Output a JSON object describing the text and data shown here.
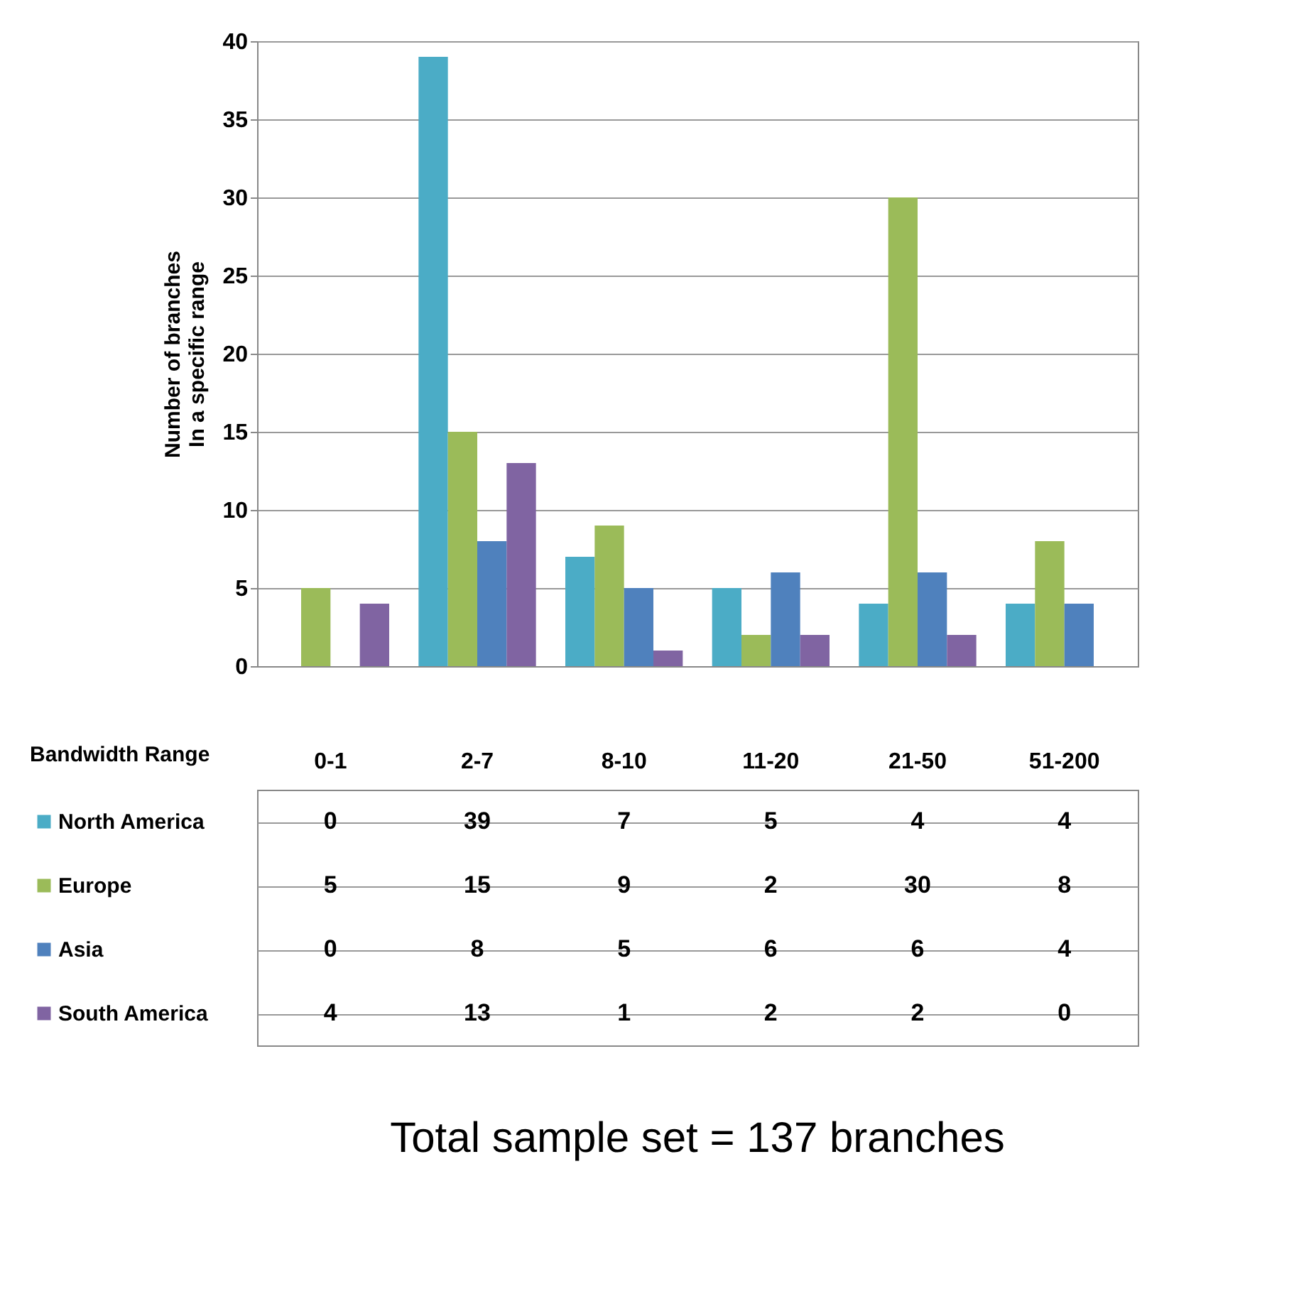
{
  "chart_data": {
    "type": "bar",
    "xlabel": "Bandwidth Range",
    "ylabel": [
      "Number of branches",
      "In a specific range"
    ],
    "categories": [
      "0-1",
      "2-7",
      "8-10",
      "11-20",
      "21-50",
      "51-200"
    ],
    "series": [
      {
        "name": "North America",
        "color": "#4bacc6",
        "values": [
          0,
          39,
          7,
          5,
          4,
          4
        ]
      },
      {
        "name": "Europe",
        "color": "#9bbb59",
        "values": [
          5,
          15,
          9,
          2,
          30,
          8
        ]
      },
      {
        "name": "Asia",
        "color": "#4f81bd",
        "values": [
          0,
          8,
          5,
          6,
          6,
          4
        ]
      },
      {
        "name": "South America",
        "color": "#8064a2",
        "values": [
          4,
          13,
          1,
          2,
          2,
          0
        ]
      }
    ],
    "ylim": [
      0,
      40
    ],
    "yticks": [
      0,
      5,
      10,
      15,
      20,
      25,
      30,
      35,
      40
    ],
    "grid": "y",
    "data_labels": true,
    "legend": "bottom",
    "annotations": [
      "Total sample set = 137 branches"
    ]
  }
}
